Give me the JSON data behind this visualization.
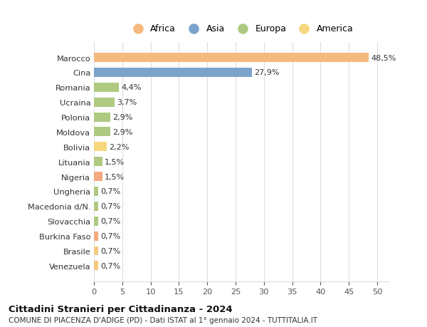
{
  "categories": [
    "Venezuela",
    "Brasile",
    "Burkina Faso",
    "Slovacchia",
    "Macedonia d/N.",
    "Ungheria",
    "Nigeria",
    "Lituania",
    "Bolivia",
    "Moldova",
    "Polonia",
    "Ucraina",
    "Romania",
    "Cina",
    "Marocco"
  ],
  "values": [
    0.7,
    0.7,
    0.7,
    0.7,
    0.7,
    0.7,
    1.5,
    1.5,
    2.2,
    2.9,
    2.9,
    3.7,
    4.4,
    27.9,
    48.5
  ],
  "labels": [
    "0,7%",
    "0,7%",
    "0,7%",
    "0,7%",
    "0,7%",
    "0,7%",
    "1,5%",
    "1,5%",
    "2,2%",
    "2,9%",
    "2,9%",
    "3,7%",
    "4,4%",
    "27,9%",
    "48,5%"
  ],
  "colors": [
    "#F5C97F",
    "#F5C97F",
    "#F5A97F",
    "#AECA82",
    "#AECA82",
    "#AECA82",
    "#F5A97F",
    "#AECA82",
    "#F5D87F",
    "#AECA82",
    "#AECA82",
    "#AECA82",
    "#AECA82",
    "#7BA3CC",
    "#F5B97F"
  ],
  "legend_items": [
    {
      "label": "Africa",
      "color": "#F5B97F"
    },
    {
      "label": "Asia",
      "color": "#7BA3CC"
    },
    {
      "label": "Europa",
      "color": "#AECA82"
    },
    {
      "label": "America",
      "color": "#F5D87F"
    }
  ],
  "xlim": [
    0,
    52
  ],
  "xticks": [
    0,
    5,
    10,
    15,
    20,
    25,
    30,
    35,
    40,
    45,
    50
  ],
  "title1": "Cittadini Stranieri per Cittadinanza - 2024",
  "title2": "COMUNE DI PIACENZA D'ADIGE (PD) - Dati ISTAT al 1° gennaio 2024 - TUTTITALIA.IT",
  "background_color": "#ffffff",
  "grid_color": "#dddddd",
  "bar_height": 0.62
}
